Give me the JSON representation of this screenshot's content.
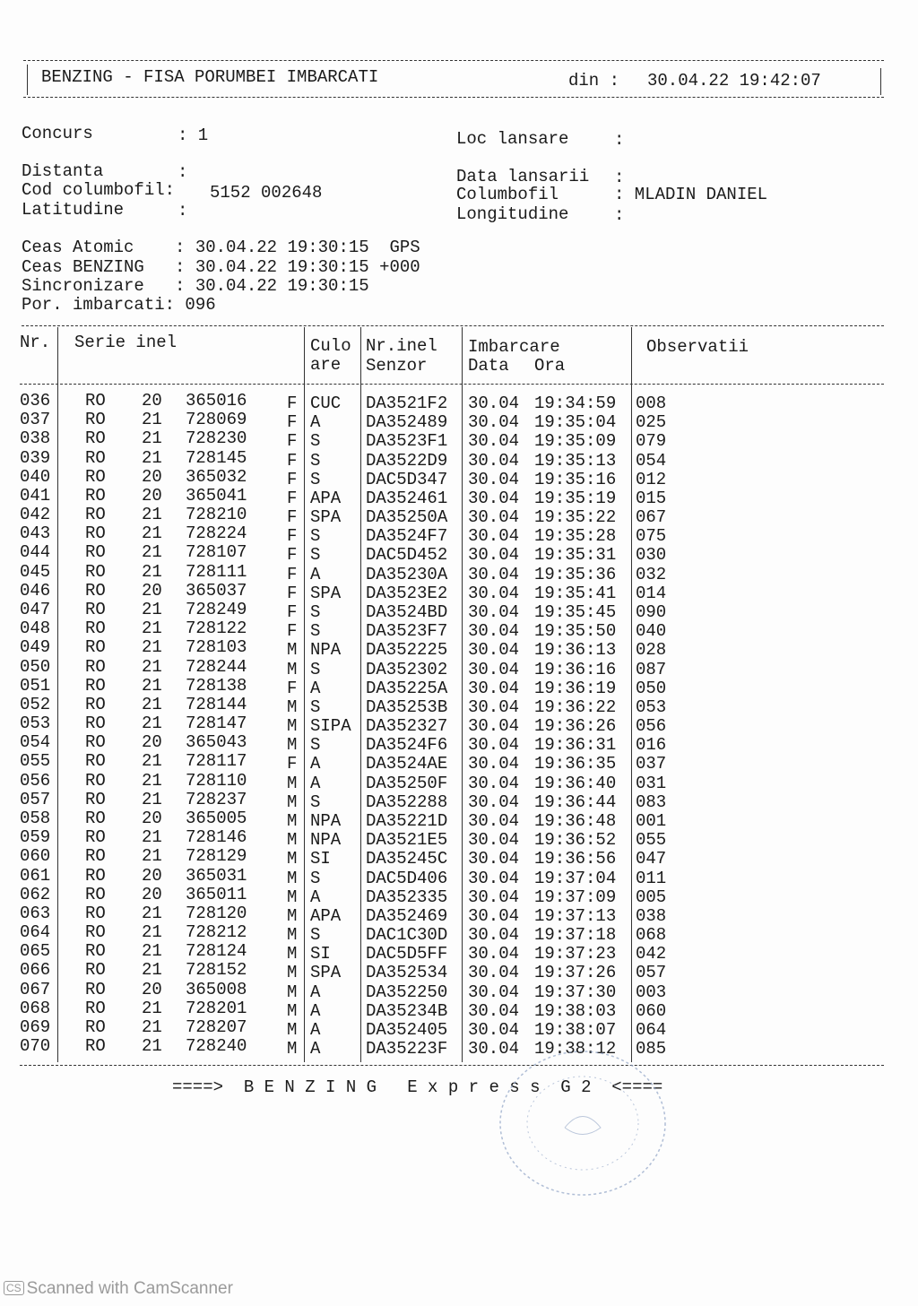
{
  "header": {
    "title": "BENZING - FISA PORUMBEI IMBARCATI",
    "din_label": "din :",
    "datetime": "30.04.22 19:42:07"
  },
  "info": {
    "concurs_label": "Concurs",
    "concurs_value": ": 1",
    "loc_label": "Loc lansare",
    "loc_value": ":",
    "distanta_label": "Distanta",
    "distanta_value": ":",
    "cod_label": "Cod columbofil:",
    "cod_value": "5152 002648",
    "latitudine_label": "Latitudine",
    "latitudine_value": ":",
    "data_lansarii_label": "Data lansarii",
    "data_lansarii_value": ":",
    "columbofil_label": "Columbofil",
    "columbofil_value": ": MLADIN DANIEL",
    "longitudine_label": "Longitudine",
    "longitudine_value": ":",
    "ceas_atomic": "Ceas Atomic    : 30.04.22 19:30:15  GPS",
    "ceas_benzing": "Ceas BENZING   : 30.04.22 19:30:15 +000",
    "sincronizare": "Sincronizare   : 30.04.22 19:30:15",
    "por_imbarcati": "Por. imbarcati: 096"
  },
  "table": {
    "headers": {
      "nr": "Nr.",
      "serie": "Serie inel",
      "culoare1": "Culo",
      "culoare2": "are",
      "nrinel1": "Nr.inel",
      "nrinel2": "Senzor",
      "imbarcare": "Imbarcare",
      "data": "Data",
      "ora": "Ora",
      "observatii": "Observatii"
    },
    "rows": [
      [
        "036",
        "RO",
        "20",
        "365016",
        "F",
        "CUC",
        "DA3521F2",
        "30.04",
        "19:34:59",
        "008"
      ],
      [
        "037",
        "RO",
        "21",
        "728069",
        "F",
        "A",
        "DA352489",
        "30.04",
        "19:35:04",
        "025"
      ],
      [
        "038",
        "RO",
        "21",
        "728230",
        "F",
        "S",
        "DA3523F1",
        "30.04",
        "19:35:09",
        "079"
      ],
      [
        "039",
        "RO",
        "21",
        "728145",
        "F",
        "S",
        "DA3522D9",
        "30.04",
        "19:35:13",
        "054"
      ],
      [
        "040",
        "RO",
        "20",
        "365032",
        "F",
        "S",
        "DAC5D347",
        "30.04",
        "19:35:16",
        "012"
      ],
      [
        "041",
        "RO",
        "20",
        "365041",
        "F",
        "APA",
        "DA352461",
        "30.04",
        "19:35:19",
        "015"
      ],
      [
        "042",
        "RO",
        "21",
        "728210",
        "F",
        "SPA",
        "DA35250A",
        "30.04",
        "19:35:22",
        "067"
      ],
      [
        "043",
        "RO",
        "21",
        "728224",
        "F",
        "S",
        "DA3524F7",
        "30.04",
        "19:35:28",
        "075"
      ],
      [
        "044",
        "RO",
        "21",
        "728107",
        "F",
        "S",
        "DAC5D452",
        "30.04",
        "19:35:31",
        "030"
      ],
      [
        "045",
        "RO",
        "21",
        "728111",
        "F",
        "A",
        "DA35230A",
        "30.04",
        "19:35:36",
        "032"
      ],
      [
        "046",
        "RO",
        "20",
        "365037",
        "F",
        "SPA",
        "DA3523E2",
        "30.04",
        "19:35:41",
        "014"
      ],
      [
        "047",
        "RO",
        "21",
        "728249",
        "F",
        "S",
        "DA3524BD",
        "30.04",
        "19:35:45",
        "090"
      ],
      [
        "048",
        "RO",
        "21",
        "728122",
        "F",
        "S",
        "DA3523F7",
        "30.04",
        "19:35:50",
        "040"
      ],
      [
        "049",
        "RO",
        "21",
        "728103",
        "M",
        "NPA",
        "DA352225",
        "30.04",
        "19:36:13",
        "028"
      ],
      [
        "050",
        "RO",
        "21",
        "728244",
        "M",
        "S",
        "DA352302",
        "30.04",
        "19:36:16",
        "087"
      ],
      [
        "051",
        "RO",
        "21",
        "728138",
        "F",
        "A",
        "DA35225A",
        "30.04",
        "19:36:19",
        "050"
      ],
      [
        "052",
        "RO",
        "21",
        "728144",
        "M",
        "S",
        "DA35253B",
        "30.04",
        "19:36:22",
        "053"
      ],
      [
        "053",
        "RO",
        "21",
        "728147",
        "M",
        "SIPA",
        "DA352327",
        "30.04",
        "19:36:26",
        "056"
      ],
      [
        "054",
        "RO",
        "20",
        "365043",
        "M",
        "S",
        "DA3524F6",
        "30.04",
        "19:36:31",
        "016"
      ],
      [
        "055",
        "RO",
        "21",
        "728117",
        "F",
        "A",
        "DA3524AE",
        "30.04",
        "19:36:35",
        "037"
      ],
      [
        "056",
        "RO",
        "21",
        "728110",
        "M",
        "A",
        "DA35250F",
        "30.04",
        "19:36:40",
        "031"
      ],
      [
        "057",
        "RO",
        "21",
        "728237",
        "M",
        "S",
        "DA352288",
        "30.04",
        "19:36:44",
        "083"
      ],
      [
        "058",
        "RO",
        "20",
        "365005",
        "M",
        "NPA",
        "DA35221D",
        "30.04",
        "19:36:48",
        "001"
      ],
      [
        "059",
        "RO",
        "21",
        "728146",
        "M",
        "NPA",
        "DA3521E5",
        "30.04",
        "19:36:52",
        "055"
      ],
      [
        "060",
        "RO",
        "21",
        "728129",
        "M",
        "SI",
        "DA35245C",
        "30.04",
        "19:36:56",
        "047"
      ],
      [
        "061",
        "RO",
        "20",
        "365031",
        "M",
        "S",
        "DAC5D406",
        "30.04",
        "19:37:04",
        "011"
      ],
      [
        "062",
        "RO",
        "20",
        "365011",
        "M",
        "A",
        "DA352335",
        "30.04",
        "19:37:09",
        "005"
      ],
      [
        "063",
        "RO",
        "21",
        "728120",
        "M",
        "APA",
        "DA352469",
        "30.04",
        "19:37:13",
        "038"
      ],
      [
        "064",
        "RO",
        "21",
        "728212",
        "M",
        "S",
        "DAC1C30D",
        "30.04",
        "19:37:18",
        "068"
      ],
      [
        "065",
        "RO",
        "21",
        "728124",
        "M",
        "SI",
        "DAC5D5FF",
        "30.04",
        "19:37:23",
        "042"
      ],
      [
        "066",
        "RO",
        "21",
        "728152",
        "M",
        "SPA",
        "DA352534",
        "30.04",
        "19:37:26",
        "057"
      ],
      [
        "067",
        "RO",
        "20",
        "365008",
        "M",
        "A",
        "DA352250",
        "30.04",
        "19:37:30",
        "003"
      ],
      [
        "068",
        "RO",
        "21",
        "728201",
        "M",
        "A",
        "DA35234B",
        "30.04",
        "19:38:03",
        "060"
      ],
      [
        "069",
        "RO",
        "21",
        "728207",
        "M",
        "A",
        "DA352405",
        "30.04",
        "19:38:07",
        "064"
      ],
      [
        "070",
        "RO",
        "21",
        "728240",
        "M",
        "A",
        "DA35223F",
        "30.04",
        "19:38:12",
        "085"
      ]
    ]
  },
  "footer": {
    "banner": "====>  B E N Z I N G   E x p r e s s  G 2  <====",
    "scanner": "Scanned with CamScanner"
  }
}
